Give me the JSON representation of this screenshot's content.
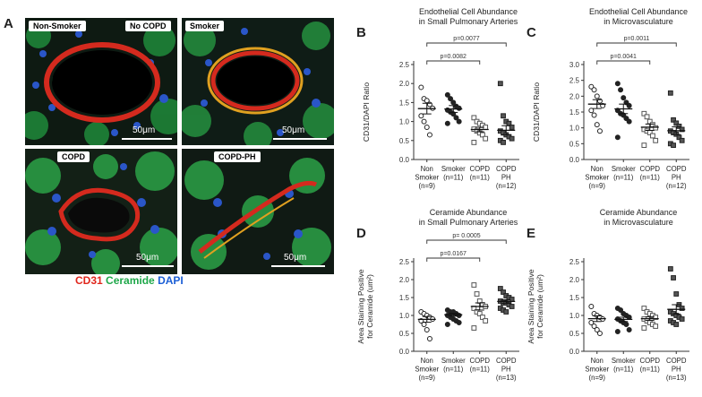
{
  "panel_a": {
    "letter": "A",
    "images": [
      {
        "label": "Non-Smoker",
        "scale": "50μm"
      },
      {
        "label": "No COPD",
        "scale": ""
      },
      {
        "label": "Smoker",
        "scale": "50μm"
      },
      {
        "label": "COPD",
        "scale": "50μm"
      },
      {
        "label": "COPD-PH",
        "scale": "50μm"
      }
    ],
    "legend": [
      {
        "text": "CD31",
        "color": "#e0261c"
      },
      {
        "text": "Ceramide",
        "color": "#1fa84a"
      },
      {
        "text": "DAPI",
        "color": "#1c5fd6"
      }
    ]
  },
  "chart_data": [
    {
      "panel": "B",
      "type": "scatter",
      "title": [
        "Endothelial Cell Abundance",
        "in Small Pulmonary Arteries"
      ],
      "ylabel": [
        "CD31/DAPI Ratio"
      ],
      "ylim": [
        0,
        2.5
      ],
      "yticks": [
        "0.0",
        "0.5",
        "1.0",
        "1.5",
        "2.0",
        "2.5"
      ],
      "categories": [
        {
          "label": [
            "Non",
            "Smoker",
            "(n=9)"
          ],
          "marker": "open-circle",
          "values": [
            1.9,
            1.6,
            1.55,
            1.45,
            1.35,
            1.15,
            1.0,
            0.85,
            0.65
          ],
          "mean": 1.34,
          "sem": 0.14
        },
        {
          "label": [
            "Smoker",
            "(n=11)"
          ],
          "marker": "filled-circle",
          "values": [
            1.7,
            1.6,
            1.5,
            1.4,
            1.35,
            1.3,
            1.25,
            1.2,
            1.1,
            1.0,
            0.95
          ],
          "mean": 1.33,
          "sem": 0.09
        },
        {
          "label": [
            "COPD",
            "(n=11)"
          ],
          "marker": "open-square",
          "values": [
            1.1,
            1.0,
            0.95,
            0.9,
            0.85,
            0.8,
            0.75,
            0.7,
            0.65,
            0.55,
            0.45
          ],
          "mean": 0.79,
          "sem": 0.06
        },
        {
          "label": [
            "COPD",
            "PH",
            "(n=12)"
          ],
          "marker": "filled-square",
          "values": [
            2.0,
            1.15,
            1.0,
            0.95,
            0.85,
            0.75,
            0.7,
            0.65,
            0.6,
            0.55,
            0.5,
            0.45
          ],
          "mean": 0.77,
          "sem": 0.12
        }
      ],
      "significance": [
        {
          "from": 0,
          "to": 2,
          "text": "p=0.0082"
        },
        {
          "from": 0,
          "to": 3,
          "text": "p=0.0077"
        }
      ]
    },
    {
      "panel": "C",
      "type": "scatter",
      "title": [
        "Endothelial Cell Abundance",
        "in Microvasculature"
      ],
      "ylabel": [
        "CD31/DAPI Ratio"
      ],
      "ylim": [
        0,
        3.0
      ],
      "yticks": [
        "0.0",
        "0.5",
        "1.0",
        "1.5",
        "2.0",
        "2.5",
        "3.0"
      ],
      "categories": [
        {
          "label": [
            "Non",
            "Smoker",
            "(n=9)"
          ],
          "marker": "open-circle",
          "values": [
            2.3,
            2.2,
            2.0,
            1.85,
            1.7,
            1.55,
            1.4,
            1.1,
            0.9
          ],
          "mean": 1.75,
          "sem": 0.14
        },
        {
          "label": [
            "Smoker",
            "(n=11)"
          ],
          "marker": "filled-circle",
          "values": [
            2.4,
            2.2,
            1.95,
            1.8,
            1.7,
            1.55,
            1.45,
            1.4,
            1.3,
            1.2,
            0.7
          ],
          "mean": 1.6,
          "sem": 0.15
        },
        {
          "label": [
            "COPD",
            "(n=11)"
          ],
          "marker": "open-square",
          "values": [
            1.45,
            1.35,
            1.2,
            1.1,
            1.0,
            0.95,
            0.9,
            0.85,
            0.75,
            0.6,
            0.45
          ],
          "mean": 1.02,
          "sem": 0.1
        },
        {
          "label": [
            "COPD",
            "PH",
            "(n=12)"
          ],
          "marker": "filled-square",
          "values": [
            2.1,
            1.25,
            1.15,
            1.05,
            0.95,
            0.9,
            0.85,
            0.8,
            0.7,
            0.6,
            0.5,
            0.45
          ],
          "mean": 0.91,
          "sem": 0.12
        }
      ],
      "significance": [
        {
          "from": 0,
          "to": 2,
          "text": "p=0.0041"
        },
        {
          "from": 0,
          "to": 3,
          "text": "p=0.0011"
        }
      ]
    },
    {
      "panel": "D",
      "type": "scatter",
      "title": [
        "Ceramide Abundance",
        "in Small Pulmonary Arteries"
      ],
      "ylabel": [
        "Area Staining Positive",
        "for Ceramide (um²)"
      ],
      "ylim": [
        0,
        2.5
      ],
      "yticks": [
        "0.0",
        "0.5",
        "1.0",
        "1.5",
        "2.0",
        "2.5"
      ],
      "categories": [
        {
          "label": [
            "Non",
            "Smoker",
            "(n=9)"
          ],
          "marker": "open-circle",
          "values": [
            1.1,
            1.05,
            1.0,
            0.95,
            0.9,
            0.85,
            0.75,
            0.6,
            0.35
          ],
          "mean": 0.89,
          "sem": 0.08
        },
        {
          "label": [
            "Smoker",
            "(n=11)"
          ],
          "marker": "filled-circle",
          "values": [
            1.15,
            1.1,
            1.1,
            1.05,
            1.0,
            1.0,
            0.95,
            0.9,
            0.85,
            0.8,
            0.75
          ],
          "mean": 1.02,
          "sem": 0.04
        },
        {
          "label": [
            "COPD",
            "(n=11)"
          ],
          "marker": "open-square",
          "values": [
            1.85,
            1.6,
            1.4,
            1.3,
            1.25,
            1.2,
            1.1,
            1.05,
            0.95,
            0.85,
            0.65
          ],
          "mean": 1.25,
          "sem": 0.1
        },
        {
          "label": [
            "COPD",
            "PH",
            "(n=13)"
          ],
          "marker": "filled-square",
          "values": [
            1.75,
            1.65,
            1.55,
            1.5,
            1.45,
            1.4,
            1.35,
            1.35,
            1.3,
            1.25,
            1.2,
            1.15,
            1.1
          ],
          "mean": 1.39,
          "sem": 0.05
        }
      ],
      "significance": [
        {
          "from": 0,
          "to": 2,
          "text": "p=0.0167"
        },
        {
          "from": 0,
          "to": 3,
          "text": "p= 0.0005"
        }
      ]
    },
    {
      "panel": "E",
      "type": "scatter",
      "title": [
        "Ceramide Abundance",
        "in Microvasculature"
      ],
      "ylabel": [
        "Area Staining Positive",
        "for Ceramide (um²)"
      ],
      "ylim": [
        0,
        2.5
      ],
      "yticks": [
        "0.0",
        "0.5",
        "1.0",
        "1.5",
        "2.0",
        "2.5"
      ],
      "categories": [
        {
          "label": [
            "Non",
            "Smoker",
            "(n=9)"
          ],
          "marker": "open-circle",
          "values": [
            1.25,
            1.05,
            1.0,
            0.95,
            0.9,
            0.8,
            0.7,
            0.6,
            0.5
          ],
          "mean": 0.91,
          "sem": 0.08
        },
        {
          "label": [
            "Smoker",
            "(n=11)"
          ],
          "marker": "filled-circle",
          "values": [
            1.2,
            1.15,
            1.05,
            1.0,
            0.95,
            0.9,
            0.85,
            0.8,
            0.75,
            0.6,
            0.55
          ],
          "mean": 0.89,
          "sem": 0.06
        },
        {
          "label": [
            "COPD",
            "(n=11)"
          ],
          "marker": "open-square",
          "values": [
            1.2,
            1.1,
            1.05,
            1.0,
            0.95,
            0.9,
            0.85,
            0.8,
            0.75,
            0.7,
            0.65
          ],
          "mean": 0.91,
          "sem": 0.05
        },
        {
          "label": [
            "COPD",
            "PH",
            "(n=13)"
          ],
          "marker": "filled-square",
          "values": [
            2.3,
            2.05,
            1.6,
            1.3,
            1.2,
            1.1,
            1.05,
            1.0,
            0.95,
            0.9,
            0.85,
            0.8,
            0.75
          ],
          "mean": 1.17,
          "sem": 0.13
        }
      ],
      "significance": []
    }
  ]
}
